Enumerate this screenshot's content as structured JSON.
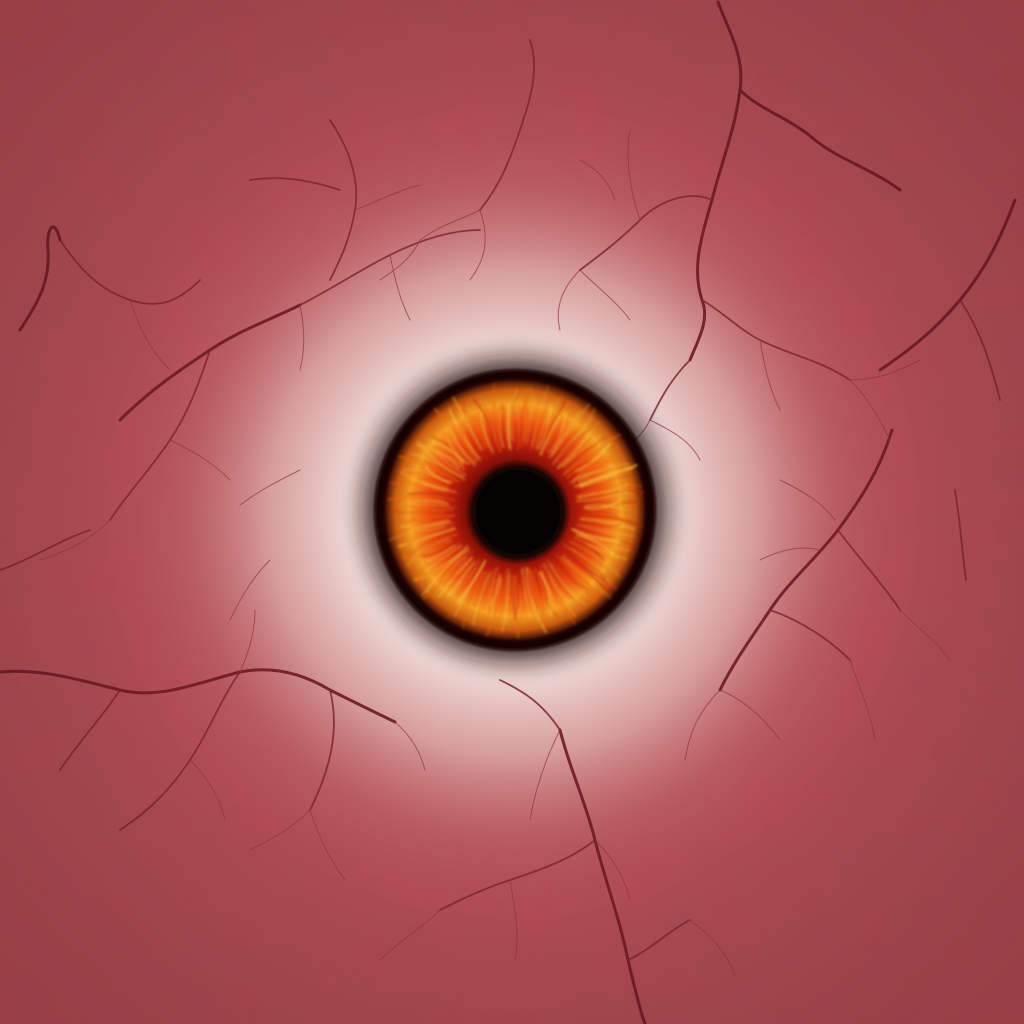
{
  "image": {
    "subject": "eye-texture",
    "colors": {
      "flesh": "#b04a52",
      "flesh_dark": "#9d3d46",
      "sclera_light": "#f3e6e2",
      "sclera_mid": "#e2b9b6",
      "vein_dark": "#6e1a22",
      "vein_light": "#9a3a44",
      "iris_outer": "#1a0a08",
      "iris_red": "#c01e0c",
      "iris_orange": "#ef6a12",
      "iris_yellow": "#f7c23a",
      "pupil": "#050302"
    }
  }
}
